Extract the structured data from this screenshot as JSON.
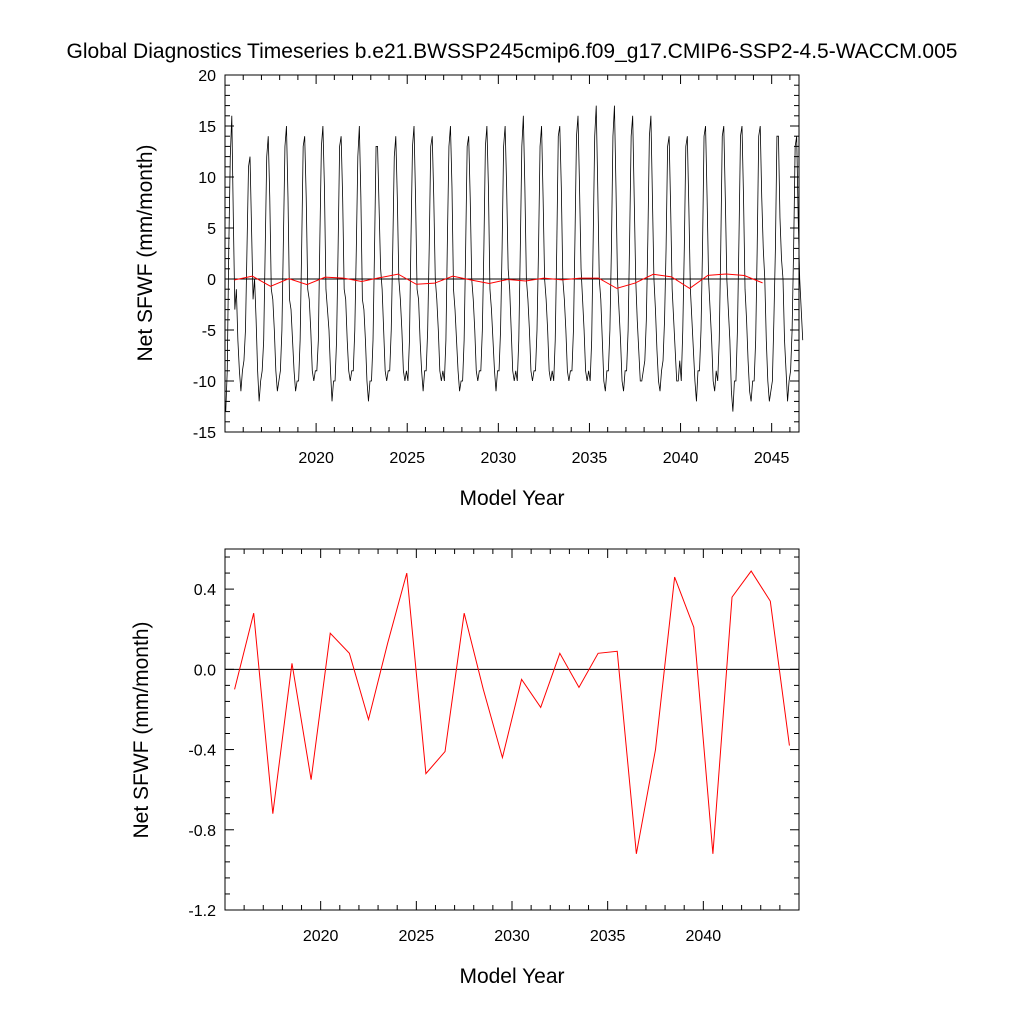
{
  "title": "Global Diagnostics Timeseries b.e21.BWSSP245cmip6.f09_g17.CMIP6-SSP2-4.5-WACCM.005",
  "colors": {
    "monthly": "#000000",
    "annual": "#ff0000",
    "zero_line": "#000000",
    "frame": "#000000"
  },
  "chart_data": [
    {
      "type": "line",
      "xlabel": "Model Year",
      "ylabel": "Net SFWF (mm/month)",
      "xlim": [
        2015,
        2046.5
      ],
      "ylim": [
        -15,
        20
      ],
      "x_ticks": [
        2020,
        2025,
        2030,
        2035,
        2040,
        2045
      ],
      "y_ticks": [
        -15,
        -10,
        -5,
        0,
        5,
        10,
        15,
        20
      ],
      "y_tick_labels": [
        "-15",
        "-10",
        "-5",
        "0",
        "5",
        "10",
        "15",
        "20"
      ],
      "reference_line": 0,
      "monthly_series": {
        "x_start": 2015.04,
        "x_step": 0.08333,
        "values": [
          -13,
          -9,
          3,
          12,
          16,
          6,
          -3,
          -1,
          -6,
          -9,
          -11,
          -9,
          -8,
          -5,
          3,
          11,
          12,
          5,
          -2,
          0,
          -4,
          -9,
          -12,
          -10,
          -9,
          -6,
          3,
          12,
          14,
          8,
          -1,
          -2,
          -5,
          -9,
          -11,
          -10,
          -9,
          -5,
          4,
          13,
          15,
          8,
          -2,
          -3,
          -6,
          -9,
          -11,
          -10,
          -10,
          -6,
          3,
          13,
          14,
          8,
          -1,
          -2,
          -5,
          -9,
          -10,
          -9,
          -9,
          -6,
          4,
          13,
          15,
          9,
          -1,
          -3,
          -5,
          -9,
          -12,
          -10,
          -10,
          -6,
          3,
          13,
          14,
          8,
          -1,
          -2,
          -6,
          -9,
          -10,
          -9,
          -9,
          -5,
          3,
          12,
          15,
          8,
          -2,
          -3,
          -6,
          -10,
          -12,
          -10,
          -10,
          -6,
          3,
          13,
          13,
          7,
          1,
          -1,
          -5,
          -9,
          -10,
          -9,
          -9,
          -5,
          3,
          12,
          14,
          8,
          0,
          -2,
          -5,
          -9,
          -10,
          -9,
          -10,
          -6,
          4,
          13,
          15,
          8,
          -1,
          -2,
          -6,
          -9,
          -11,
          -9,
          -9,
          -5,
          3,
          13,
          14,
          8,
          0,
          -2,
          -5,
          -9,
          -10,
          -9,
          -10,
          -6,
          4,
          13,
          15,
          9,
          -1,
          -3,
          -6,
          -9,
          -11,
          -10,
          -10,
          -6,
          3,
          13,
          14,
          8,
          0,
          -2,
          -5,
          -9,
          -10,
          -9,
          -9,
          -5,
          3,
          13,
          15,
          9,
          -1,
          -3,
          -6,
          -9,
          -11,
          -9,
          -9,
          -5,
          3,
          13,
          15,
          9,
          1,
          -1,
          -5,
          -9,
          -10,
          -9,
          -10,
          -6,
          3,
          13,
          16,
          9,
          0,
          -2,
          -5,
          -9,
          -10,
          -9,
          -9,
          -5,
          3,
          13,
          15,
          8,
          0,
          -2,
          -5,
          -9,
          -10,
          -9,
          -10,
          -6,
          3,
          14,
          15,
          9,
          0,
          -2,
          -5,
          -9,
          -10,
          -9,
          -9,
          -5,
          4,
          14,
          16,
          9,
          1,
          -2,
          -5,
          -9,
          -10,
          -9,
          -10,
          -6,
          4,
          14,
          17,
          9,
          0,
          -2,
          -6,
          -10,
          -11,
          -9,
          -9,
          -5,
          3,
          14,
          17,
          9,
          0,
          -3,
          -6,
          -10,
          -11,
          -9,
          -9,
          -5,
          4,
          14,
          16,
          8,
          0,
          -4,
          -7,
          -10,
          -10,
          -9,
          -8,
          -4,
          4,
          14,
          16,
          8,
          0,
          -3,
          -7,
          -10,
          -11,
          -9,
          -8,
          -4,
          3,
          13,
          14,
          7,
          -1,
          -4,
          -7,
          -10,
          -10,
          -8,
          -10,
          -5,
          3,
          13,
          14,
          7,
          -1,
          -4,
          -7,
          -10,
          -12,
          -9,
          -9,
          -5,
          3,
          14,
          15,
          8,
          0,
          -3,
          -6,
          -10,
          -11,
          -9,
          -10,
          -6,
          3,
          14,
          15,
          8,
          0,
          -3,
          -6,
          -11,
          -13,
          -10,
          -10,
          -5,
          4,
          14,
          15,
          8,
          -1,
          -4,
          -8,
          -11,
          -12,
          -10,
          -10,
          -6,
          3,
          14,
          15,
          8,
          3,
          0,
          -6,
          -10,
          -12,
          -11,
          -10,
          -4,
          3,
          14,
          14,
          6,
          2,
          0,
          -6,
          -9,
          -12,
          -10,
          -9,
          -5,
          3,
          13,
          14,
          6,
          0,
          -3,
          -6
        ]
      },
      "annual_series": {
        "x": [
          2015.5,
          2016.5,
          2017.5,
          2018.5,
          2019.5,
          2020.5,
          2021.5,
          2022.5,
          2023.5,
          2024.5,
          2025.5,
          2026.5,
          2027.5,
          2028.5,
          2029.5,
          2030.5,
          2031.5,
          2032.5,
          2033.5,
          2034.5,
          2035.5,
          2036.5,
          2037.5,
          2038.5,
          2039.5,
          2040.5,
          2041.5,
          2042.5,
          2043.5,
          2044.5
        ],
        "values": [
          -0.1,
          0.28,
          -0.72,
          0.03,
          -0.55,
          0.18,
          0.08,
          -0.25,
          0.13,
          0.48,
          -0.52,
          -0.41,
          0.28,
          -0.1,
          -0.44,
          -0.05,
          -0.19,
          0.08,
          -0.09,
          0.08,
          0.09,
          -0.92,
          -0.4,
          0.46,
          0.21,
          -0.92,
          0.36,
          0.49,
          0.34,
          -0.38
        ]
      }
    },
    {
      "type": "line",
      "xlabel": "Model Year",
      "ylabel": "Net SFWF (mm/month)",
      "xlim": [
        2015,
        2045
      ],
      "ylim": [
        -1.2,
        0.6
      ],
      "x_ticks": [
        2020,
        2025,
        2030,
        2035,
        2040
      ],
      "y_ticks": [
        -1.2,
        -0.8,
        -0.4,
        0.0,
        0.4
      ],
      "y_tick_labels": [
        "-1.2",
        "-0.8",
        "-0.4",
        "0.0",
        "0.4"
      ],
      "reference_line": 0,
      "series": [
        {
          "x": [
            2015.5,
            2016.5,
            2017.5,
            2018.5,
            2019.5,
            2020.5,
            2021.5,
            2022.5,
            2023.5,
            2024.5,
            2025.5,
            2026.5,
            2027.5,
            2028.5,
            2029.5,
            2030.5,
            2031.5,
            2032.5,
            2033.5,
            2034.5,
            2035.5,
            2036.5,
            2037.5,
            2038.5,
            2039.5,
            2040.5,
            2041.5,
            2042.5,
            2043.5,
            2044.5
          ],
          "values": [
            -0.1,
            0.28,
            -0.72,
            0.03,
            -0.55,
            0.18,
            0.08,
            -0.25,
            0.13,
            0.48,
            -0.52,
            -0.41,
            0.28,
            -0.1,
            -0.44,
            -0.05,
            -0.19,
            0.08,
            -0.09,
            0.08,
            0.09,
            -0.92,
            -0.4,
            0.46,
            0.21,
            -0.92,
            0.36,
            0.49,
            0.34,
            -0.38
          ]
        }
      ]
    }
  ]
}
